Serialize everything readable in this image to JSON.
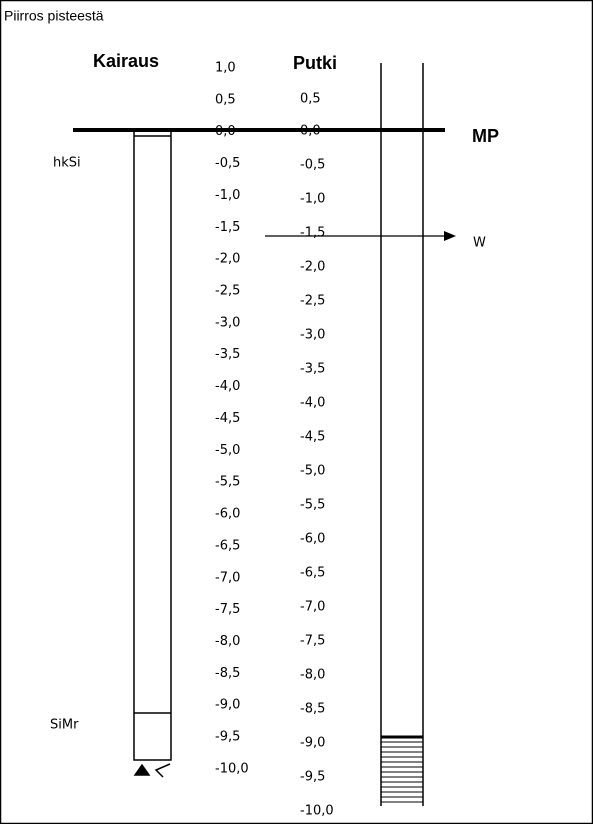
{
  "title": "Piirros pisteestä",
  "kairaus": {
    "label": "Kairaus",
    "scale": [
      "1,0",
      "0,5",
      "0,0",
      "-0,5",
      "-1,0",
      "-1,5",
      "-2,0",
      "-2,5",
      "-3,0",
      "-3,5",
      "-4,0",
      "-4,5",
      "-5,0",
      "-5,5",
      "-6,0",
      "-6,5",
      "-7,0",
      "-7,5",
      "-8,0",
      "-8,5",
      "-9,0",
      "-9,5",
      "-10,0"
    ],
    "layers": [
      "hkSi",
      "SiMr"
    ]
  },
  "putki": {
    "label": "Putki",
    "scale": [
      "0,5",
      "0,0",
      "-0,5",
      "-1,0",
      "-1,5",
      "-2,0",
      "-2,5",
      "-3,0",
      "-3,5",
      "-4,0",
      "-4,5",
      "-5,0",
      "-5,5",
      "-6,0",
      "-6,5",
      "-7,0",
      "-7,5",
      "-8,0",
      "-8,5",
      "-9,0",
      "-9,5",
      "-10,0"
    ]
  },
  "markers": {
    "mp": "MP",
    "water": "W"
  }
}
